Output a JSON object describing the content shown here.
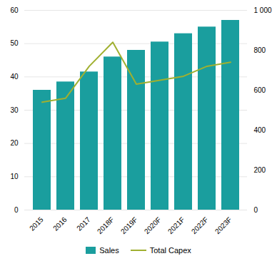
{
  "chart_data": {
    "type": "bar",
    "categories": [
      "2015",
      "2016",
      "2017",
      "2018F",
      "2019F",
      "2020F",
      "2021F",
      "2022F",
      "2023F"
    ],
    "series": [
      {
        "name": "Sales",
        "type": "bar",
        "color": "#1a9e9e",
        "values": [
          36,
          38.5,
          41.5,
          46,
          48,
          50.5,
          53,
          55,
          57
        ]
      },
      {
        "name": "Total Capex",
        "type": "line",
        "color": "#a0b030",
        "axis": "y2",
        "values": [
          540,
          560,
          720,
          840,
          630,
          650,
          670,
          720,
          740
        ]
      }
    ],
    "ylim": [
      0,
      60
    ],
    "yticks": [
      0,
      10,
      20,
      30,
      40,
      50,
      60
    ],
    "y2lim": [
      0,
      1000
    ],
    "y2ticks": [
      0,
      200,
      400,
      600,
      800,
      {
        "value": 1000,
        "label": "1 000"
      }
    ],
    "grid": true,
    "legend": "bottom"
  }
}
